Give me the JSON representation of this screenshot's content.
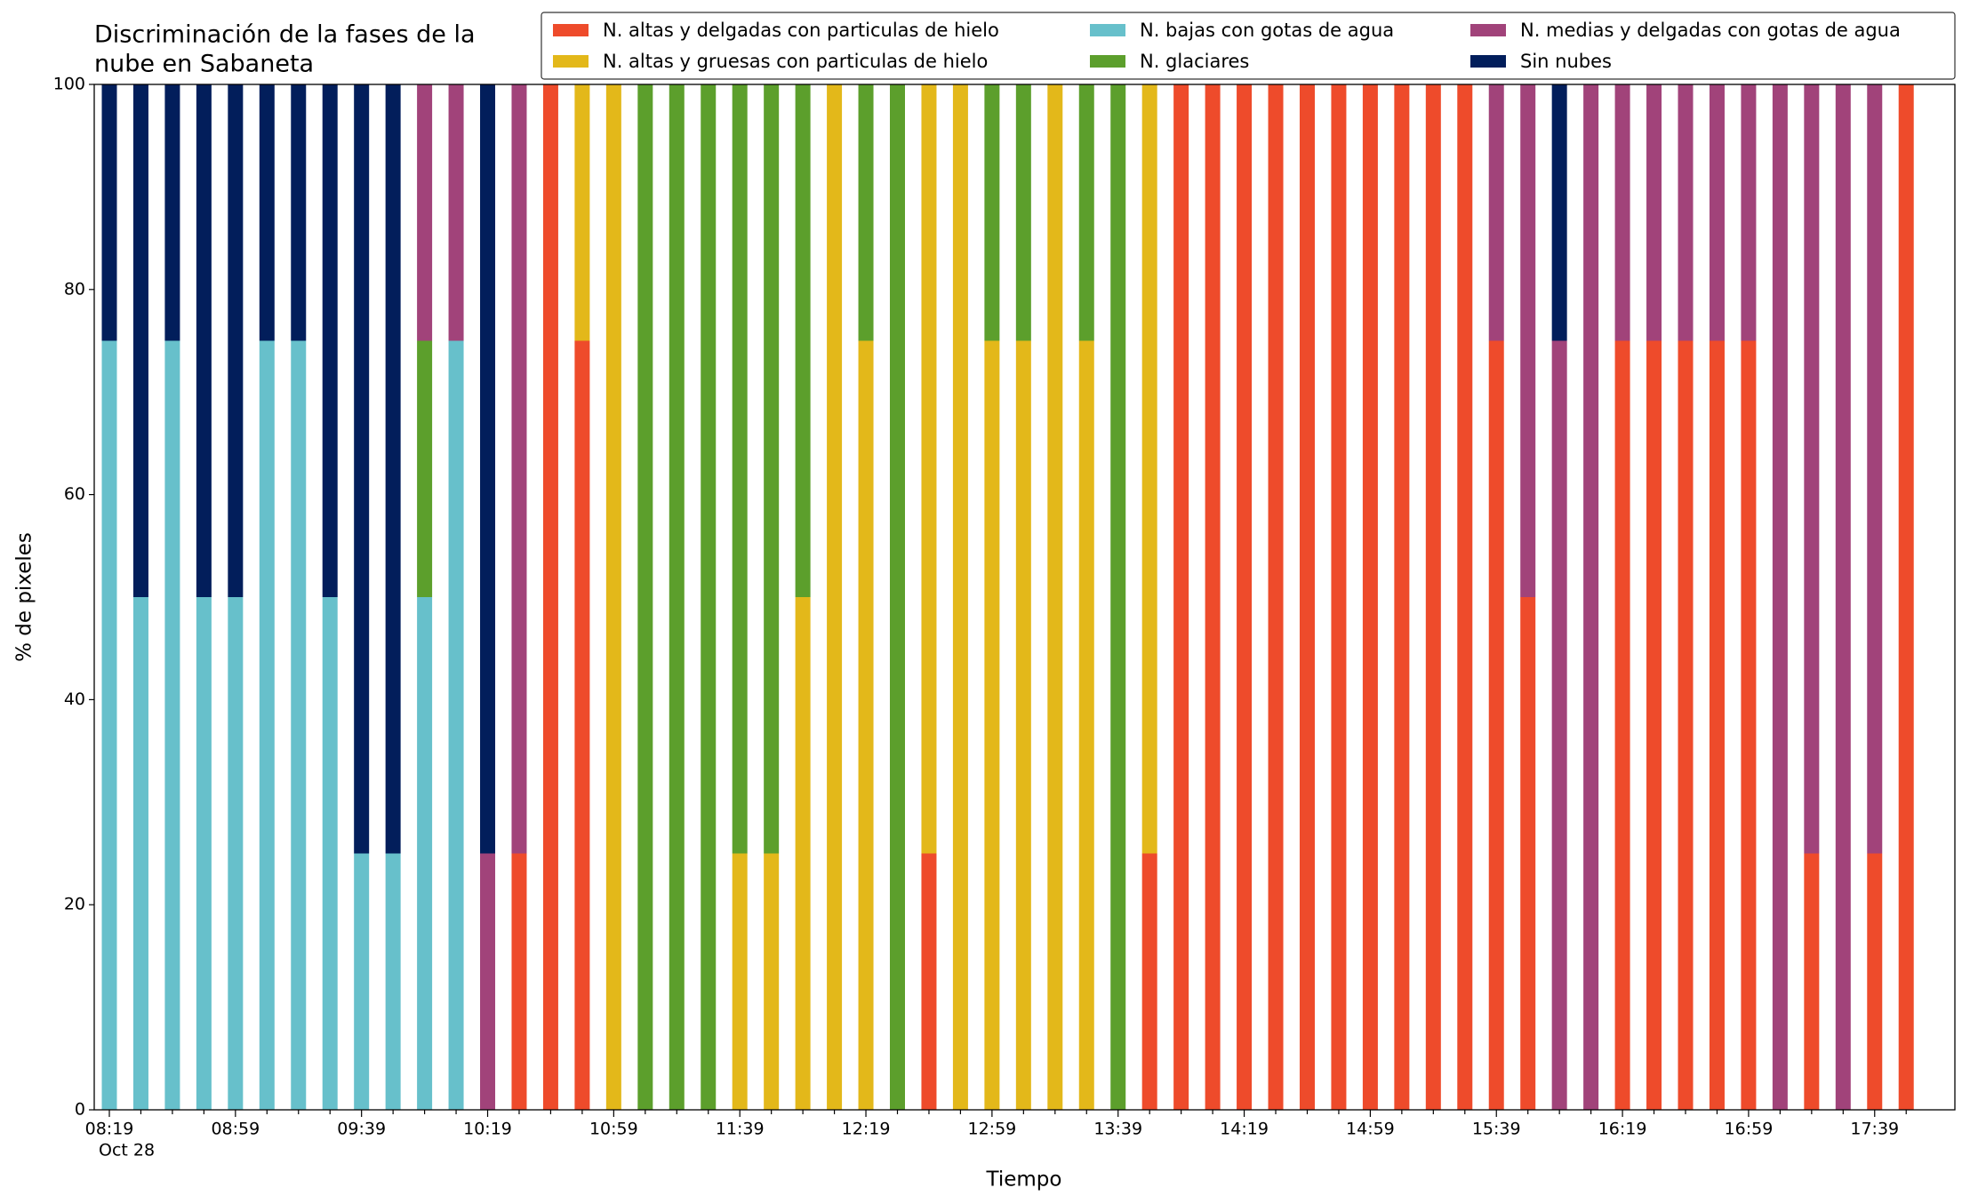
{
  "chart_data": {
    "type": "stacked_bar",
    "title": [
      "Discriminación de la fases de la",
      "nube en Sabaneta"
    ],
    "xlabel": "Tiempo",
    "ylabel": "% de pixeles",
    "date_label": "Oct 28",
    "categories": [
      "08:19",
      null,
      null,
      null,
      "08:59",
      null,
      null,
      null,
      "09:39",
      null,
      null,
      null,
      "10:19",
      null,
      null,
      null,
      "10:59",
      null,
      null,
      null,
      "11:39",
      null,
      null,
      null,
      "12:19",
      null,
      null,
      null,
      "12:59",
      null,
      null,
      null,
      "13:39",
      null,
      null,
      null,
      "14:19",
      null,
      null,
      null,
      "14:59",
      null,
      null,
      null,
      "15:39",
      null,
      null,
      null,
      "16:19",
      null,
      null,
      null,
      "16:59",
      null,
      null,
      null,
      "17:39",
      null
    ],
    "series": [
      {
        "name": "N. altas y delgadas con particulas de hielo",
        "color": "#ee4b2b",
        "values": [
          0,
          0,
          0,
          0,
          0,
          0,
          0,
          0,
          0,
          0,
          0,
          0,
          0,
          25,
          100,
          75,
          0,
          0,
          0,
          0,
          0,
          0,
          0,
          0,
          0,
          0,
          25,
          0,
          0,
          0,
          0,
          0,
          0,
          25,
          100,
          100,
          100,
          100,
          100,
          100,
          100,
          100,
          100,
          100,
          75,
          50,
          0,
          0,
          75,
          75,
          75,
          75,
          75,
          0,
          25,
          0,
          25,
          100
        ]
      },
      {
        "name": "N. altas y gruesas con particulas de hielo",
        "color": "#e3b81a",
        "values": [
          0,
          0,
          0,
          0,
          0,
          0,
          0,
          0,
          0,
          0,
          0,
          0,
          0,
          0,
          0,
          25,
          100,
          0,
          0,
          0,
          25,
          25,
          50,
          100,
          75,
          0,
          75,
          100,
          75,
          75,
          100,
          75,
          0,
          75,
          0,
          0,
          0,
          0,
          0,
          0,
          0,
          0,
          0,
          0,
          0,
          0,
          0,
          0,
          0,
          0,
          0,
          0,
          0,
          0,
          0,
          0,
          0,
          0
        ]
      },
      {
        "name": "N. bajas con gotas de agua",
        "color": "#67c0cb",
        "values": [
          75,
          50,
          75,
          50,
          50,
          75,
          75,
          50,
          25,
          25,
          50,
          75,
          0,
          0,
          0,
          0,
          0,
          0,
          0,
          0,
          0,
          0,
          0,
          0,
          0,
          0,
          0,
          0,
          0,
          0,
          0,
          0,
          0,
          0,
          0,
          0,
          0,
          0,
          0,
          0,
          0,
          0,
          0,
          0,
          0,
          0,
          0,
          0,
          0,
          0,
          0,
          0,
          0,
          0,
          0,
          0,
          0,
          0
        ]
      },
      {
        "name": "N. glaciares",
        "color": "#5c9f2c",
        "values": [
          0,
          0,
          0,
          0,
          0,
          0,
          0,
          0,
          0,
          0,
          25,
          0,
          0,
          0,
          0,
          0,
          0,
          100,
          100,
          100,
          75,
          75,
          50,
          0,
          25,
          100,
          0,
          0,
          25,
          25,
          0,
          25,
          100,
          0,
          0,
          0,
          0,
          0,
          0,
          0,
          0,
          0,
          0,
          0,
          0,
          0,
          0,
          0,
          0,
          0,
          0,
          0,
          0,
          0,
          0,
          0,
          0,
          0
        ]
      },
      {
        "name": "N. medias y delgadas con gotas de agua",
        "color": "#a1437a",
        "values": [
          0,
          0,
          0,
          0,
          0,
          0,
          0,
          0,
          0,
          0,
          25,
          25,
          25,
          75,
          0,
          0,
          0,
          0,
          0,
          0,
          0,
          0,
          0,
          0,
          0,
          0,
          0,
          0,
          0,
          0,
          0,
          0,
          0,
          0,
          0,
          0,
          0,
          0,
          0,
          0,
          0,
          0,
          0,
          0,
          25,
          50,
          75,
          100,
          25,
          25,
          25,
          25,
          25,
          100,
          75,
          100,
          75,
          0
        ]
      },
      {
        "name": "Sin nubes",
        "color": "#021e5b",
        "values": [
          25,
          50,
          25,
          50,
          50,
          25,
          25,
          50,
          75,
          75,
          0,
          0,
          75,
          0,
          0,
          0,
          0,
          0,
          0,
          0,
          0,
          0,
          0,
          0,
          0,
          0,
          0,
          0,
          0,
          0,
          0,
          0,
          0,
          0,
          0,
          0,
          0,
          0,
          0,
          0,
          0,
          0,
          0,
          0,
          0,
          0,
          25,
          0,
          0,
          0,
          0,
          0,
          0,
          0,
          0,
          0,
          0,
          0
        ]
      }
    ],
    "ylim": [
      0,
      100
    ],
    "yticks": [
      0,
      20,
      40,
      60,
      80,
      100
    ],
    "grid": false,
    "legend": "top-right"
  }
}
